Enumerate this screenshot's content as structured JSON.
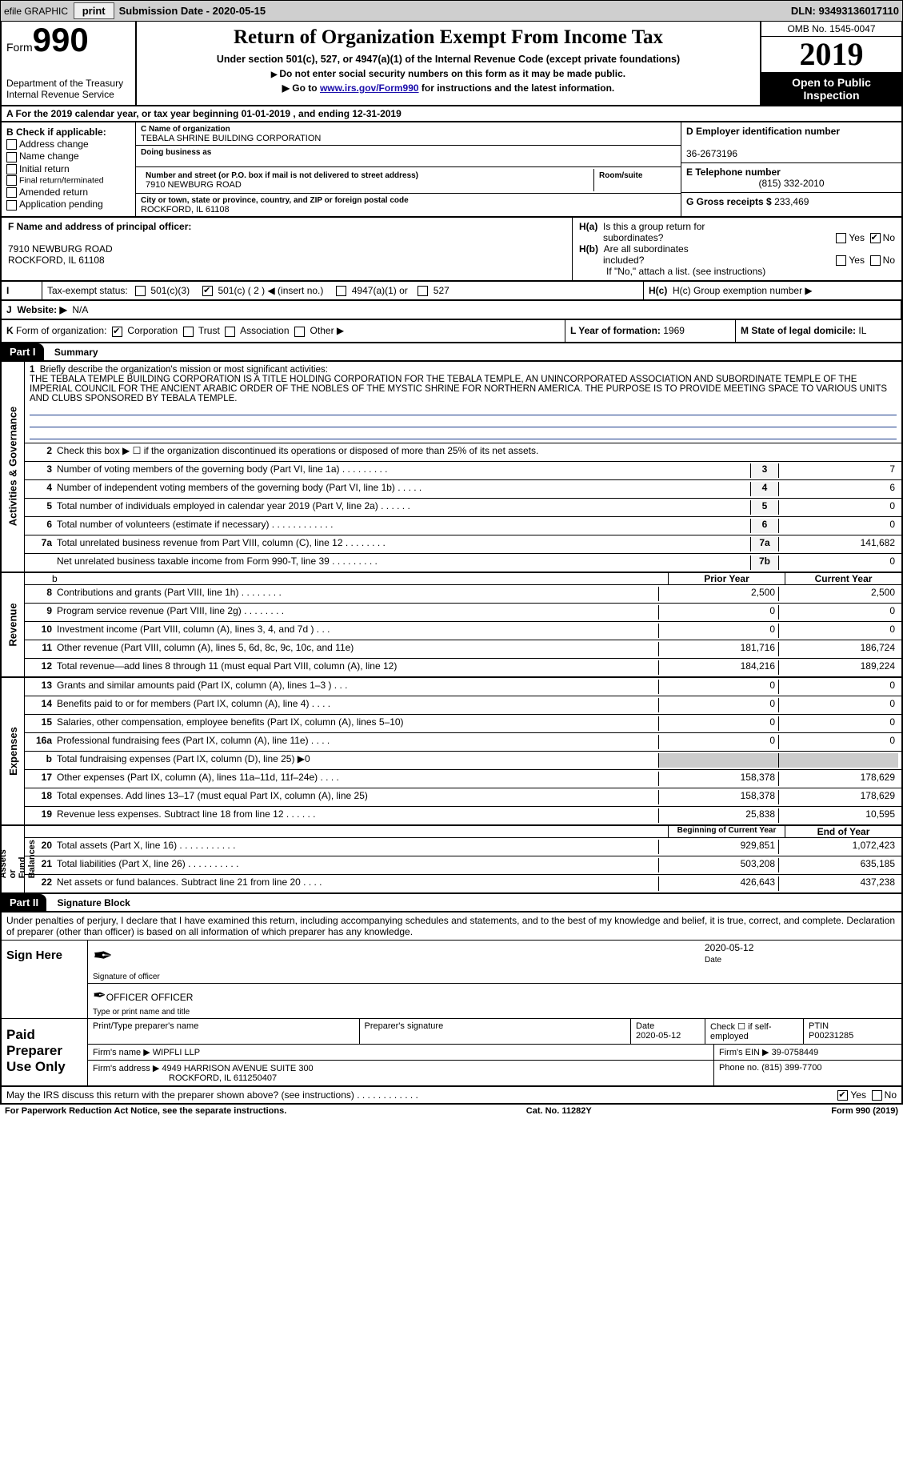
{
  "topbar": {
    "efile": "efile GRAPHIC",
    "print": "print",
    "subdate_label": "Submission Date - ",
    "subdate": "2020-05-15",
    "dln_label": "DLN: ",
    "dln": "93493136017110"
  },
  "header": {
    "form_word": "Form",
    "form_num": "990",
    "dept": "Department of the Treasury\nInternal Revenue Service",
    "title": "Return of Organization Exempt From Income Tax",
    "subtitle": "Under section 501(c), 527, or 4947(a)(1) of the Internal Revenue Code (except private foundations)",
    "nossn": "Do not enter social security numbers on this form as it may be made public.",
    "goto_pre": "Go to ",
    "goto_link": "www.irs.gov/Form990",
    "goto_post": " for instructions and the latest information.",
    "omb": "OMB No. 1545-0047",
    "year": "2019",
    "open": "Open to Public Inspection"
  },
  "barA": "A For the 2019 calendar year, or tax year beginning 01-01-2019     , and ending 12-31-2019",
  "boxB": {
    "label": "B Check if applicable:",
    "addr": "Address change",
    "name": "Name change",
    "init": "Initial return",
    "final": "Final return/terminated",
    "amend": "Amended return",
    "app": "Application pending"
  },
  "boxC": {
    "label": "C Name of organization",
    "org": "TEBALA SHRINE BUILDING CORPORATION",
    "dba_label": "Doing business as",
    "dba": "",
    "street_label": "Number and street (or P.O. box if mail is not delivered to street address)",
    "room_label": "Room/suite",
    "street": "7910 NEWBURG ROAD",
    "city_label": "City or town, state or province, country, and ZIP or foreign postal code",
    "city": "ROCKFORD, IL  61108"
  },
  "boxD": {
    "label": "D Employer identification number",
    "ein": "36-2673196"
  },
  "boxE": {
    "label": "E Telephone number",
    "phone": "(815) 332-2010"
  },
  "boxG": {
    "label": "G Gross receipts $ ",
    "val": "233,469"
  },
  "boxF": {
    "label": "F Name and address of principal officer:",
    "addr1": "7910 NEWBURG ROAD",
    "addr2": "ROCKFORD, IL  61108"
  },
  "boxH": {
    "a_label": "H(a)  Is this a group return for subordinates?",
    "b_label": "H(b)  Are all subordinates included?",
    "ifno": "If \"No,\" attach a list. (see instructions)",
    "c_label": "H(c)  Group exemption number ▶",
    "yes": "Yes",
    "no": "No"
  },
  "rowI": {
    "i": "I",
    "label": "Tax-exempt status:",
    "c3": "501(c)(3)",
    "c": "501(c) ( 2 ) ◀ (insert no.)",
    "a1": "4947(a)(1) or",
    "s527": "527"
  },
  "rowJ": {
    "j": "J",
    "label": "Website: ▶",
    "val": "N/A"
  },
  "rowK": {
    "k": "K",
    "label": "Form of organization:",
    "corp": "Corporation",
    "trust": "Trust",
    "assoc": "Association",
    "other": "Other ▶"
  },
  "rowL": {
    "label": "L Year of formation: ",
    "val": "1969"
  },
  "rowM": {
    "label": "M State of legal domicile: ",
    "val": "IL"
  },
  "partI": {
    "tag": "Part I",
    "title": "Summary"
  },
  "mission": {
    "num": "1",
    "label": "Briefly describe the organization's mission or most significant activities:",
    "text": "THE TEBALA TEMPLE BUILDING CORPORATION IS A TITLE HOLDING CORPORATION FOR THE TEBALA TEMPLE, AN UNINCORPORATED ASSOCIATION AND SUBORDINATE TEMPLE OF THE IMPERIAL COUNCIL FOR THE ANCIENT ARABIC ORDER OF THE NOBLES OF THE MYSTIC SHRINE FOR NORTHERN AMERICA. THE PURPOSE IS TO PROVIDE MEETING SPACE TO VARIOUS UNITS AND CLUBS SPONSORED BY TEBALA TEMPLE."
  },
  "lines_ag": [
    {
      "n": "2",
      "t": "Check this box ▶ ☐  if the organization discontinued its operations or disposed of more than 25% of its net assets.",
      "box": "",
      "v": ""
    },
    {
      "n": "3",
      "t": "Number of voting members of the governing body (Part VI, line 1a)  .    .    .    .    .    .    .    .    .",
      "box": "3",
      "v": "7"
    },
    {
      "n": "4",
      "t": "Number of independent voting members of the governing body (Part VI, line 1b)    .    .    .    .    .",
      "box": "4",
      "v": "6"
    },
    {
      "n": "5",
      "t": "Total number of individuals employed in calendar year 2019 (Part V, line 2a)   .    .    .    .    .    .",
      "box": "5",
      "v": "0"
    },
    {
      "n": "6",
      "t": "Total number of volunteers (estimate if necessary)   .    .    .    .    .    .    .    .    .    .    .    .",
      "box": "6",
      "v": "0"
    },
    {
      "n": "7a",
      "t": "Total unrelated business revenue from Part VIII, column (C), line 12  .    .    .    .    .    .    .    .",
      "box": "7a",
      "v": "141,682"
    },
    {
      "n": "",
      "t": "Net unrelated business taxable income from Form 990-T, line 39   .    .    .    .    .    .    .    .    .",
      "box": "7b",
      "v": "0"
    }
  ],
  "twocol_hdr": {
    "l": "b",
    "h1": "Prior Year",
    "h2": "Current Year"
  },
  "lines_rev": [
    {
      "n": "8",
      "t": "Contributions and grants (Part VIII, line 1h)   .    .    .    .    .    .    .    .",
      "v1": "2,500",
      "v2": "2,500"
    },
    {
      "n": "9",
      "t": "Program service revenue (Part VIII, line 2g)    .    .    .    .    .    .    .    .",
      "v1": "0",
      "v2": "0"
    },
    {
      "n": "10",
      "t": "Investment income (Part VIII, column (A), lines 3, 4, and 7d )   .    .    .",
      "v1": "0",
      "v2": "0"
    },
    {
      "n": "11",
      "t": "Other revenue (Part VIII, column (A), lines 5, 6d, 8c, 9c, 10c, and 11e)",
      "v1": "181,716",
      "v2": "186,724"
    },
    {
      "n": "12",
      "t": "Total revenue—add lines 8 through 11 (must equal Part VIII, column (A), line 12)",
      "v1": "184,216",
      "v2": "189,224"
    }
  ],
  "lines_exp": [
    {
      "n": "13",
      "t": "Grants and similar amounts paid (Part IX, column (A), lines 1–3 )   .    .    .",
      "v1": "0",
      "v2": "0"
    },
    {
      "n": "14",
      "t": "Benefits paid to or for members (Part IX, column (A), line 4)   .    .    .    .",
      "v1": "0",
      "v2": "0"
    },
    {
      "n": "15",
      "t": "Salaries, other compensation, employee benefits (Part IX, column (A), lines 5–10)",
      "v1": "0",
      "v2": "0"
    },
    {
      "n": "16a",
      "t": "Professional fundraising fees (Part IX, column (A), line 11e)   .    .    .    .",
      "v1": "0",
      "v2": "0"
    },
    {
      "n": "b",
      "t": "Total fundraising expenses (Part IX, column (D), line 25) ▶0",
      "v1": "",
      "v2": "",
      "blank": true
    },
    {
      "n": "17",
      "t": "Other expenses (Part IX, column (A), lines 11a–11d, 11f–24e)   .    .    .    .",
      "v1": "158,378",
      "v2": "178,629"
    },
    {
      "n": "18",
      "t": "Total expenses. Add lines 13–17 (must equal Part IX, column (A), line 25)",
      "v1": "158,378",
      "v2": "178,629"
    },
    {
      "n": "19",
      "t": "Revenue less expenses. Subtract line 18 from line 12  .    .    .    .    .    .",
      "v1": "25,838",
      "v2": "10,595"
    }
  ],
  "na_hdr": {
    "h1": "Beginning of Current Year",
    "h2": "End of Year"
  },
  "lines_na": [
    {
      "n": "20",
      "t": "Total assets (Part X, line 16)   .    .    .    .    .    .    .    .    .    .    .",
      "v1": "929,851",
      "v2": "1,072,423"
    },
    {
      "n": "21",
      "t": "Total liabilities (Part X, line 26)   .    .    .    .    .    .    .    .    .    .",
      "v1": "503,208",
      "v2": "635,185"
    },
    {
      "n": "22",
      "t": "Net assets or fund balances. Subtract line 21 from line 20   .    .    .    .",
      "v1": "426,643",
      "v2": "437,238"
    }
  ],
  "vtabs": {
    "ag": "Activities & Governance",
    "rev": "Revenue",
    "exp": "Expenses",
    "na": "Net Assets or\nFund Balances"
  },
  "partII": {
    "tag": "Part II",
    "title": "Signature Block"
  },
  "sig": {
    "intro": "Under penalties of perjury, I declare that I have examined this return, including accompanying schedules and statements, and to the best of my knowledge and belief, it is true, correct, and complete. Declaration of preparer (other than officer) is based on all information of which preparer has any knowledge.",
    "sign_here": "Sign Here",
    "sig_officer": "Signature of officer",
    "date": "Date",
    "sig_date": "2020-05-12",
    "name": "OFFICER OFFICER",
    "name_label": "Type or print name and title",
    "paid": "Paid Preparer Use Only",
    "print_label": "Print/Type preparer's name",
    "prep_sig": "Preparer's signature",
    "prep_date": "2020-05-12",
    "check_se": "Check ☐ if self-employed",
    "ptin_label": "PTIN",
    "ptin": "P00231285",
    "firm_name_label": "Firm's name    ▶",
    "firm_name": "WIPFLI LLP",
    "firm_ein_label": "Firm's EIN ▶",
    "firm_ein": "39-0758449",
    "firm_addr_label": "Firm's address ▶",
    "firm_addr1": "4949 HARRISON AVENUE SUITE 300",
    "firm_addr2": "ROCKFORD, IL  611250407",
    "phone_label": "Phone no.",
    "phone": "(815) 399-7700"
  },
  "discuss": "May the IRS discuss this return with the preparer shown above? (see instructions)   .    .    .    .    .    .    .    .    .    .    .    .",
  "footer": {
    "pra": "For Paperwork Reduction Act Notice, see the separate instructions.",
    "cat": "Cat. No. 11282Y",
    "form": "Form 990 (2019)"
  }
}
